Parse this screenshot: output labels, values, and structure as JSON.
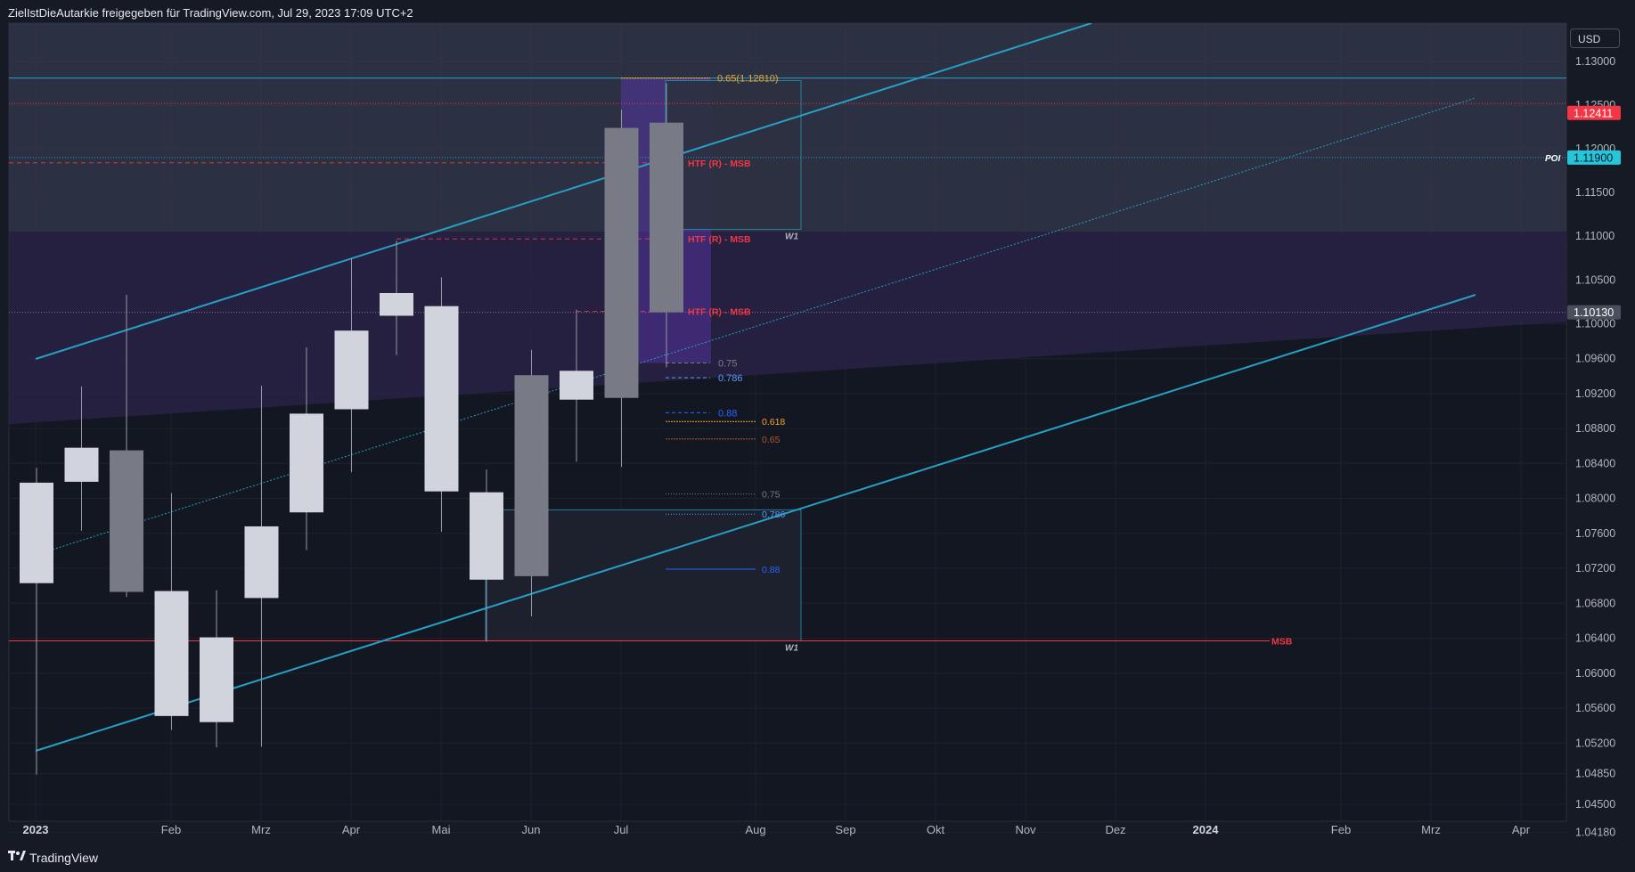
{
  "header": {
    "share_text": "ZielIstDieAutarkie freigegeben für TradingView.com, Jul 29, 2023 17:09 UTC+2"
  },
  "footer": {
    "brand": "TradingView"
  },
  "currency": "USD",
  "colors": {
    "bull": "#d1d4dc",
    "bear": "#787b86",
    "channel": "#26a0c4",
    "red": "#f23645",
    "purple": "#7b2ff7",
    "orange": "#f7a325",
    "blue": "#2962ff"
  },
  "chart_data": {
    "type": "candlestick",
    "timeframe": "W1",
    "x_tick_labels": [
      "2023",
      "Feb",
      "Mrz",
      "Apr",
      "Mai",
      "Jun",
      "Jul",
      "Aug",
      "Sep",
      "Okt",
      "Nov",
      "Dez",
      "2024",
      "Feb",
      "Mrz",
      "Apr"
    ],
    "y_tick_labels": [
      "1.13000",
      "1.12500",
      "1.12000",
      "1.11500",
      "1.11000",
      "1.10500",
      "1.10000",
      "1.09600",
      "1.09200",
      "1.08800",
      "1.08400",
      "1.08000",
      "1.07600",
      "1.07200",
      "1.06800",
      "1.06400",
      "1.06000",
      "1.05600",
      "1.05200",
      "1.04850",
      "1.04500",
      "1.04180"
    ],
    "ylim": [
      1.0405,
      1.1325
    ],
    "candles": [
      {
        "o": 1.0703,
        "h": 1.0835,
        "l": 1.0484,
        "c": 1.0818
      },
      {
        "o": 1.0819,
        "h": 1.0928,
        "l": 1.0763,
        "c": 1.0858
      },
      {
        "o": 1.0855,
        "h": 1.1033,
        "l": 1.0687,
        "c": 1.0693
      },
      {
        "o": 1.0551,
        "h": 1.0806,
        "l": 1.0535,
        "c": 1.0694
      },
      {
        "o": 1.0544,
        "h": 1.0695,
        "l": 1.0515,
        "c": 1.0641
      },
      {
        "o": 1.0686,
        "h": 1.0929,
        "l": 1.0516,
        "c": 1.0768
      },
      {
        "o": 1.0784,
        "h": 1.0973,
        "l": 1.0741,
        "c": 1.0897
      },
      {
        "o": 1.0902,
        "h": 1.1075,
        "l": 1.083,
        "c": 1.0992
      },
      {
        "o": 1.1009,
        "h": 1.1095,
        "l": 1.0964,
        "c": 1.1035
      },
      {
        "o": 1.0808,
        "h": 1.1053,
        "l": 1.0762,
        "c": 1.102
      },
      {
        "o": 1.0707,
        "h": 1.0833,
        "l": 1.0636,
        "c": 1.0807
      },
      {
        "o": 1.0941,
        "h": 1.097,
        "l": 1.0665,
        "c": 1.0711
      },
      {
        "o": 1.0913,
        "h": 1.1016,
        "l": 1.0842,
        "c": 1.0946
      },
      {
        "o": 1.1224,
        "h": 1.1245,
        "l": 1.0836,
        "c": 1.0915
      },
      {
        "o": 1.123,
        "h": 1.1275,
        "l": 1.095,
        "c": 1.1013
      }
    ],
    "price_labels": [
      {
        "text": "1.12411",
        "value": 1.12411,
        "color": "#f23645"
      },
      {
        "text": "1.11900",
        "value": 1.119,
        "color": "#26c6da",
        "tag": "POI"
      },
      {
        "text": "1.10130",
        "value": 1.1013,
        "color": "#4a4f5c"
      }
    ],
    "annotations": [
      {
        "text": "0.65(1.12810)",
        "color": "#f7a325"
      },
      {
        "text": "HTF (R) - MSB",
        "color": "#f23645"
      },
      {
        "text": "HTF (R) - MSB",
        "color": "#f23645"
      },
      {
        "text": "HTF (R) - MSB",
        "color": "#f23645"
      },
      {
        "text": "W1",
        "color": "#b2b5be"
      },
      {
        "text": "W1",
        "color": "#b2b5be"
      },
      {
        "text": "MSB",
        "color": "#f23645"
      },
      {
        "text": "0.75",
        "color": "#787b86"
      },
      {
        "text": "0.786",
        "color": "#5b9cf6"
      },
      {
        "text": "0.88",
        "color": "#2962ff"
      },
      {
        "text": "0.618",
        "color": "#f7a325"
      },
      {
        "text": "0.65",
        "color": "#b4562b"
      },
      {
        "text": "0.75",
        "color": "#787b86"
      },
      {
        "text": "0.786",
        "color": "#5b9cf6"
      },
      {
        "text": "0.88",
        "color": "#2962ff"
      }
    ]
  }
}
